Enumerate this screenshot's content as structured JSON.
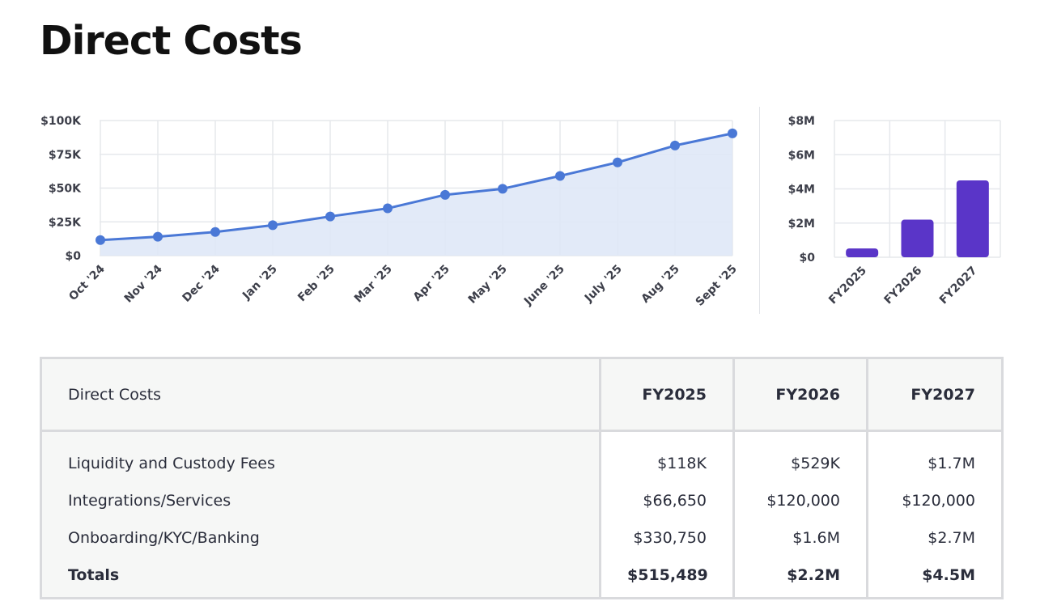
{
  "page_title": "Direct Costs",
  "colors": {
    "line": "#4a78d6",
    "area_fill": "#dfe8f7",
    "bar": "#5a35c8",
    "grid": "#e6e8ec",
    "table_border": "#d9dadd"
  },
  "chart_data": [
    {
      "type": "area",
      "categories": [
        "Oct '24",
        "Nov '24",
        "Dec '24",
        "Jan '25",
        "Feb '25",
        "Mar '25",
        "Apr '25",
        "May '25",
        "June '25",
        "July '25",
        "Aug '25",
        "Sept '25"
      ],
      "values": [
        11500,
        14000,
        17500,
        22500,
        29000,
        35000,
        45000,
        49500,
        59000,
        69000,
        81500,
        90500
      ],
      "ylim": [
        0,
        100000
      ],
      "yticks": [
        0,
        25000,
        50000,
        75000,
        100000
      ],
      "ytick_labels": [
        "$0",
        "$25K",
        "$50K",
        "$75K",
        "$100K"
      ],
      "grid": true
    },
    {
      "type": "bar",
      "categories": [
        "FY2025",
        "FY2026",
        "FY2027"
      ],
      "values": [
        515489,
        2200000,
        4500000
      ],
      "ylim": [
        0,
        8000000
      ],
      "yticks": [
        0,
        2000000,
        4000000,
        6000000,
        8000000
      ],
      "ytick_labels": [
        "$0",
        "$2M",
        "$4M",
        "$6M",
        "$8M"
      ],
      "grid": true
    }
  ],
  "table": {
    "header": {
      "label": "Direct Costs",
      "columns": [
        "FY2025",
        "FY2026",
        "FY2027"
      ]
    },
    "rows": [
      {
        "label": "Liquidity and Custody Fees",
        "values": [
          "$118K",
          "$529K",
          "$1.7M"
        ]
      },
      {
        "label": "Integrations/Services",
        "values": [
          "$66,650",
          "$120,000",
          "$120,000"
        ]
      },
      {
        "label": "Onboarding/KYC/Banking",
        "values": [
          "$330,750",
          "$1.6M",
          "$2.7M"
        ]
      }
    ],
    "totals": {
      "label": "Totals",
      "values": [
        "$515,489",
        "$2.2M",
        "$4.5M"
      ]
    }
  }
}
